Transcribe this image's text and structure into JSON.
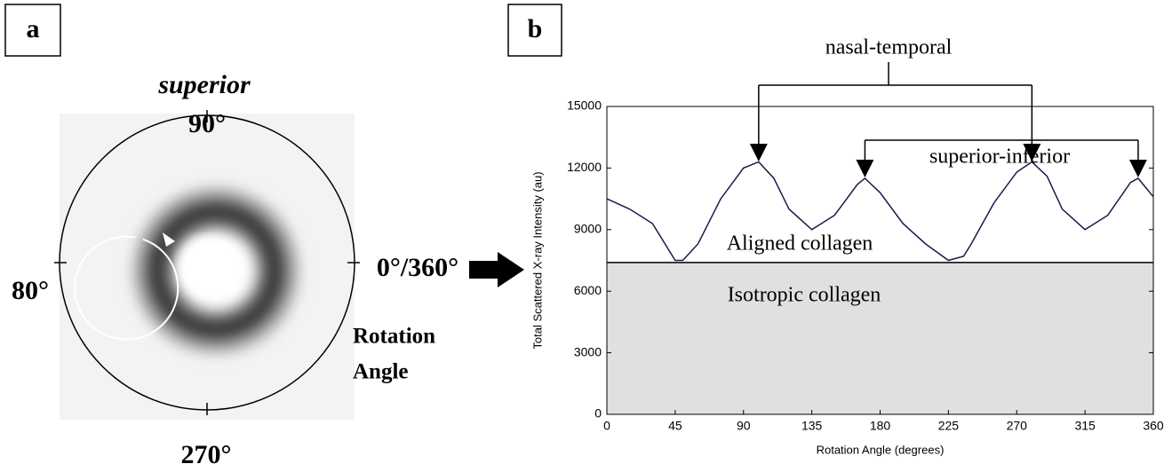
{
  "panel_a": {
    "label": "a",
    "top": "superior",
    "angle_top": "90°",
    "angle_left": "80°",
    "angle_right": "0°/360°",
    "angle_bottom": "270°",
    "caption_1": "Rotation",
    "caption_2": "Angle"
  },
  "chart_data": {
    "type": "line",
    "panel_label": "b",
    "x_label": "Rotation Angle (degrees)",
    "y_label": "Total Scattered X-ray Intensity (au)",
    "x": [
      0,
      15,
      30,
      45,
      50,
      60,
      75,
      90,
      100,
      110,
      120,
      135,
      150,
      165,
      170,
      180,
      195,
      210,
      225,
      235,
      240,
      255,
      270,
      280,
      290,
      300,
      315,
      330,
      345,
      350,
      360
    ],
    "series": [
      {
        "color": "#1a1a4a",
        "values": [
          10500,
          10000,
          9300,
          7500,
          7500,
          8300,
          10500,
          12000,
          12300,
          11500,
          10000,
          9000,
          9700,
          11200,
          11500,
          10800,
          9300,
          8300,
          7500,
          7700,
          8300,
          10300,
          11800,
          12300,
          11600,
          10000,
          9000,
          9700,
          11300,
          11500,
          10600
        ]
      }
    ],
    "baseline": 7400,
    "baseline_color": "#e0e0e0",
    "annotations": [
      {
        "text": "nasal-temporal",
        "x": [
          100,
          280
        ]
      },
      {
        "text": "superior-inferior",
        "x": [
          170,
          350
        ]
      }
    ],
    "region_labels": [
      "Aligned collagen",
      "Isotropic collagen"
    ],
    "xlim": [
      0,
      360
    ],
    "xticks": [
      0,
      45,
      90,
      135,
      180,
      225,
      270,
      315,
      360
    ],
    "ylim": [
      0,
      15000
    ],
    "yticks": [
      0,
      3000,
      6000,
      9000,
      12000,
      15000
    ]
  }
}
